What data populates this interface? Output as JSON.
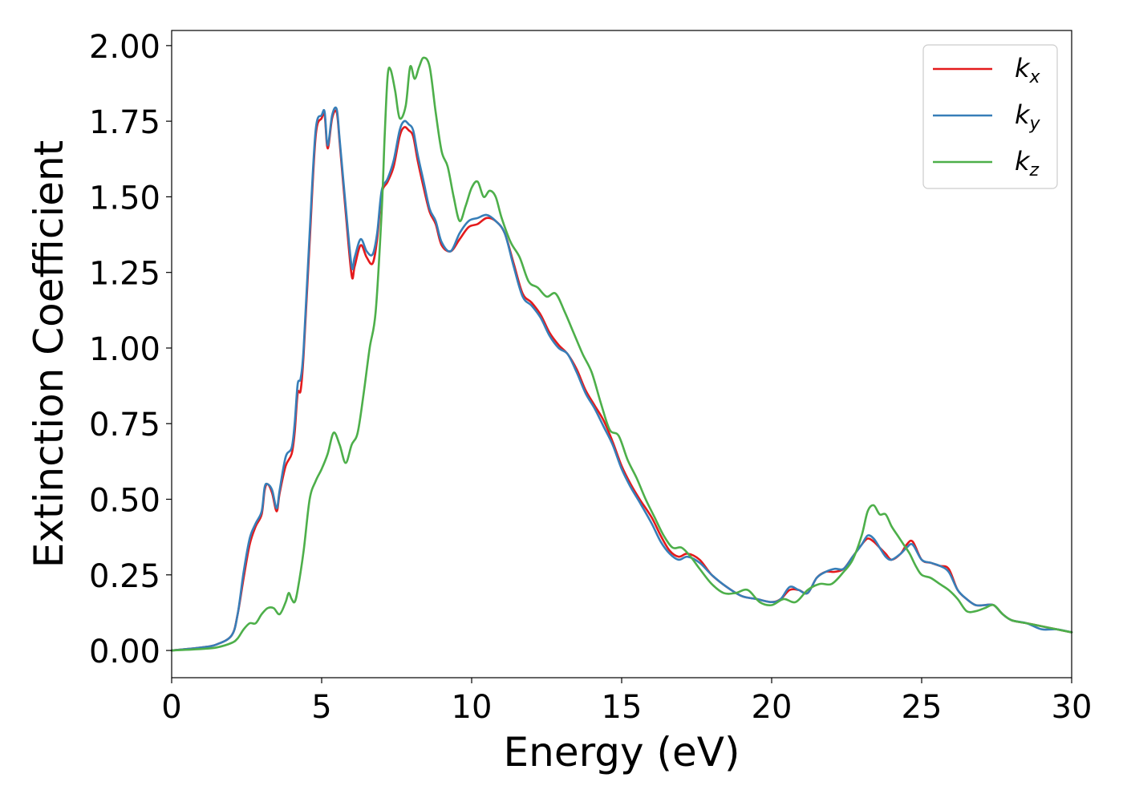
{
  "chart_data": {
    "type": "line",
    "xlabel": "Energy (eV)",
    "ylabel": "Extinction Coefficient",
    "xlim": [
      0,
      30
    ],
    "ylim": [
      -0.09,
      2.05
    ],
    "xticks": [
      0,
      5,
      10,
      15,
      20,
      25,
      30
    ],
    "yticks": [
      0.0,
      0.25,
      0.5,
      0.75,
      1.0,
      1.25,
      1.5,
      1.75,
      2.0
    ],
    "xtick_labels": [
      "0",
      "5",
      "10",
      "15",
      "20",
      "25",
      "30"
    ],
    "ytick_labels": [
      "0.00",
      "0.25",
      "0.50",
      "0.75",
      "1.00",
      "1.25",
      "1.50",
      "1.75",
      "2.00"
    ],
    "grid": false,
    "legend_position": "top-right",
    "series": [
      {
        "name": "k_x",
        "label_main": "k",
        "label_sub": "x",
        "color": "#e41a1c",
        "x": [
          0,
          1,
          1.5,
          2,
          2.2,
          2.4,
          2.6,
          2.8,
          3.0,
          3.1,
          3.2,
          3.35,
          3.5,
          3.6,
          3.8,
          4.0,
          4.1,
          4.2,
          4.3,
          4.4,
          4.6,
          4.8,
          5.0,
          5.1,
          5.2,
          5.35,
          5.5,
          5.6,
          5.8,
          6.0,
          6.1,
          6.3,
          6.5,
          6.7,
          6.85,
          7.0,
          7.2,
          7.4,
          7.6,
          7.75,
          7.9,
          8.05,
          8.2,
          8.4,
          8.6,
          8.8,
          9.0,
          9.3,
          9.6,
          9.9,
          10.2,
          10.5,
          10.8,
          11.1,
          11.4,
          11.7,
          12.0,
          12.3,
          12.6,
          12.9,
          13.2,
          13.5,
          13.8,
          14.1,
          14.4,
          14.7,
          15.0,
          15.3,
          15.6,
          16.0,
          16.3,
          16.6,
          16.9,
          17.2,
          17.6,
          18.0,
          18.5,
          19.0,
          19.5,
          20.0,
          20.3,
          20.6,
          20.9,
          21.2,
          21.5,
          21.8,
          22.1,
          22.4,
          22.7,
          23.0,
          23.2,
          23.4,
          23.6,
          23.8,
          24.0,
          24.3,
          24.5,
          24.7,
          25.0,
          25.3,
          25.6,
          25.9,
          26.2,
          26.5,
          26.8,
          27.1,
          27.4,
          27.7,
          28.0,
          28.5,
          29.0,
          29.5,
          30.0
        ],
        "y": [
          0.0,
          0.01,
          0.02,
          0.05,
          0.12,
          0.24,
          0.35,
          0.41,
          0.45,
          0.53,
          0.55,
          0.52,
          0.46,
          0.52,
          0.61,
          0.65,
          0.72,
          0.85,
          0.86,
          0.98,
          1.35,
          1.7,
          1.76,
          1.77,
          1.66,
          1.76,
          1.78,
          1.68,
          1.45,
          1.24,
          1.27,
          1.34,
          1.3,
          1.28,
          1.36,
          1.51,
          1.55,
          1.6,
          1.7,
          1.73,
          1.72,
          1.7,
          1.62,
          1.53,
          1.45,
          1.41,
          1.34,
          1.32,
          1.36,
          1.4,
          1.41,
          1.43,
          1.42,
          1.38,
          1.28,
          1.18,
          1.15,
          1.11,
          1.05,
          1.01,
          0.98,
          0.93,
          0.86,
          0.81,
          0.76,
          0.69,
          0.61,
          0.55,
          0.5,
          0.44,
          0.38,
          0.33,
          0.31,
          0.32,
          0.3,
          0.25,
          0.21,
          0.18,
          0.17,
          0.16,
          0.17,
          0.2,
          0.2,
          0.19,
          0.24,
          0.26,
          0.26,
          0.27,
          0.31,
          0.35,
          0.37,
          0.36,
          0.34,
          0.32,
          0.3,
          0.32,
          0.35,
          0.36,
          0.3,
          0.29,
          0.28,
          0.27,
          0.2,
          0.17,
          0.15,
          0.15,
          0.15,
          0.12,
          0.1,
          0.09,
          0.08,
          0.07,
          0.06
        ]
      },
      {
        "name": "k_y",
        "label_main": "k",
        "label_sub": "y",
        "color": "#377eb8",
        "x": [
          0,
          1,
          1.5,
          2,
          2.2,
          2.4,
          2.6,
          2.8,
          3.0,
          3.1,
          3.2,
          3.35,
          3.5,
          3.6,
          3.8,
          4.0,
          4.1,
          4.2,
          4.3,
          4.4,
          4.6,
          4.8,
          5.0,
          5.1,
          5.2,
          5.35,
          5.5,
          5.6,
          5.8,
          6.0,
          6.1,
          6.3,
          6.5,
          6.7,
          6.85,
          7.0,
          7.2,
          7.4,
          7.6,
          7.75,
          7.9,
          8.05,
          8.2,
          8.4,
          8.6,
          8.8,
          9.0,
          9.3,
          9.6,
          9.9,
          10.2,
          10.5,
          10.8,
          11.1,
          11.4,
          11.7,
          12.0,
          12.3,
          12.6,
          12.9,
          13.2,
          13.5,
          13.8,
          14.1,
          14.4,
          14.7,
          15.0,
          15.3,
          15.6,
          16.0,
          16.3,
          16.6,
          16.9,
          17.2,
          17.6,
          18.0,
          18.5,
          19.0,
          19.5,
          20.0,
          20.3,
          20.6,
          20.9,
          21.2,
          21.5,
          21.8,
          22.1,
          22.4,
          22.7,
          23.0,
          23.2,
          23.4,
          23.6,
          23.8,
          24.0,
          24.3,
          24.5,
          24.7,
          25.0,
          25.3,
          25.6,
          25.9,
          26.2,
          26.5,
          26.8,
          27.1,
          27.4,
          27.7,
          28.0,
          28.5,
          29.0,
          29.5,
          30.0
        ],
        "y": [
          0.0,
          0.01,
          0.02,
          0.05,
          0.12,
          0.26,
          0.37,
          0.42,
          0.46,
          0.54,
          0.55,
          0.53,
          0.47,
          0.53,
          0.64,
          0.67,
          0.75,
          0.88,
          0.9,
          1.0,
          1.38,
          1.72,
          1.77,
          1.78,
          1.67,
          1.77,
          1.79,
          1.69,
          1.47,
          1.27,
          1.3,
          1.36,
          1.32,
          1.31,
          1.38,
          1.52,
          1.56,
          1.62,
          1.72,
          1.75,
          1.74,
          1.72,
          1.64,
          1.55,
          1.46,
          1.42,
          1.35,
          1.32,
          1.38,
          1.42,
          1.43,
          1.44,
          1.42,
          1.38,
          1.27,
          1.17,
          1.14,
          1.1,
          1.04,
          1.0,
          0.98,
          0.92,
          0.85,
          0.8,
          0.74,
          0.68,
          0.6,
          0.54,
          0.49,
          0.42,
          0.36,
          0.32,
          0.3,
          0.31,
          0.29,
          0.25,
          0.21,
          0.18,
          0.17,
          0.16,
          0.17,
          0.21,
          0.2,
          0.19,
          0.24,
          0.26,
          0.27,
          0.27,
          0.31,
          0.35,
          0.38,
          0.37,
          0.34,
          0.31,
          0.3,
          0.32,
          0.34,
          0.35,
          0.3,
          0.29,
          0.28,
          0.26,
          0.2,
          0.17,
          0.15,
          0.15,
          0.15,
          0.12,
          0.1,
          0.09,
          0.07,
          0.07,
          0.06
        ]
      },
      {
        "name": "k_z",
        "label_main": "k",
        "label_sub": "z",
        "color": "#4daf4a",
        "x": [
          0,
          1,
          1.5,
          2,
          2.2,
          2.4,
          2.6,
          2.8,
          3.0,
          3.2,
          3.4,
          3.6,
          3.8,
          3.9,
          4.0,
          4.1,
          4.2,
          4.4,
          4.6,
          4.8,
          5.0,
          5.2,
          5.4,
          5.6,
          5.8,
          6.0,
          6.2,
          6.4,
          6.6,
          6.8,
          7.0,
          7.1,
          7.2,
          7.3,
          7.45,
          7.6,
          7.8,
          7.95,
          8.1,
          8.25,
          8.4,
          8.6,
          8.8,
          9.0,
          9.2,
          9.4,
          9.6,
          9.8,
          10.0,
          10.2,
          10.4,
          10.6,
          10.8,
          11.0,
          11.3,
          11.6,
          11.9,
          12.2,
          12.5,
          12.8,
          13.1,
          13.4,
          13.7,
          14.0,
          14.3,
          14.6,
          14.9,
          15.2,
          15.5,
          15.8,
          16.1,
          16.4,
          16.7,
          17.0,
          17.3,
          17.6,
          18.0,
          18.4,
          18.8,
          19.2,
          19.6,
          20.0,
          20.4,
          20.8,
          21.2,
          21.6,
          22.0,
          22.4,
          22.7,
          23.0,
          23.2,
          23.4,
          23.6,
          23.8,
          24.0,
          24.2,
          24.4,
          24.6,
          24.8,
          25.0,
          25.3,
          25.6,
          25.9,
          26.2,
          26.5,
          26.8,
          27.1,
          27.4,
          27.7,
          28.0,
          28.5,
          29.0,
          29.5,
          30.0
        ],
        "y": [
          0.0,
          0.005,
          0.01,
          0.025,
          0.04,
          0.07,
          0.09,
          0.09,
          0.12,
          0.14,
          0.14,
          0.12,
          0.16,
          0.19,
          0.17,
          0.16,
          0.2,
          0.33,
          0.5,
          0.56,
          0.6,
          0.65,
          0.72,
          0.68,
          0.62,
          0.68,
          0.72,
          0.85,
          1.0,
          1.12,
          1.45,
          1.7,
          1.9,
          1.92,
          1.85,
          1.76,
          1.8,
          1.93,
          1.89,
          1.93,
          1.96,
          1.93,
          1.78,
          1.65,
          1.6,
          1.5,
          1.42,
          1.47,
          1.53,
          1.55,
          1.5,
          1.52,
          1.5,
          1.43,
          1.35,
          1.3,
          1.22,
          1.2,
          1.17,
          1.18,
          1.12,
          1.05,
          0.98,
          0.92,
          0.82,
          0.73,
          0.71,
          0.63,
          0.57,
          0.5,
          0.44,
          0.38,
          0.34,
          0.34,
          0.31,
          0.27,
          0.22,
          0.19,
          0.19,
          0.2,
          0.16,
          0.15,
          0.17,
          0.16,
          0.2,
          0.22,
          0.22,
          0.26,
          0.3,
          0.38,
          0.46,
          0.48,
          0.45,
          0.45,
          0.41,
          0.38,
          0.35,
          0.32,
          0.28,
          0.25,
          0.24,
          0.22,
          0.2,
          0.17,
          0.13,
          0.13,
          0.14,
          0.15,
          0.12,
          0.1,
          0.09,
          0.08,
          0.07,
          0.06
        ]
      }
    ]
  }
}
